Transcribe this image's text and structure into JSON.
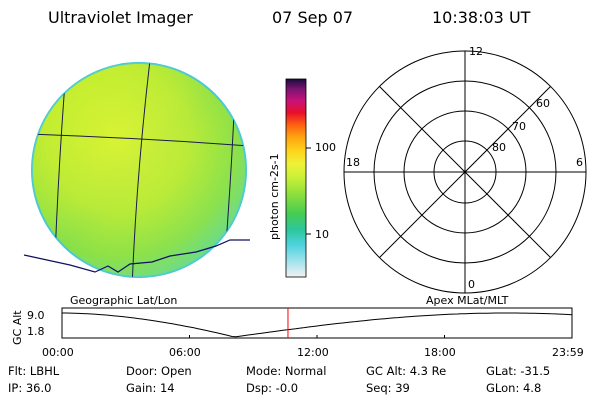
{
  "header": {
    "instrument": "Ultraviolet Imager",
    "date": "07 Sep 07",
    "time": "10:38:03 UT"
  },
  "colorbar": {
    "unit_label": "photon cm-2s-1",
    "ticks": [
      {
        "value": 100,
        "label": "100"
      },
      {
        "value": 10,
        "label": "10"
      }
    ]
  },
  "polar_plot": {
    "mlt_labels": [
      {
        "hour": 12,
        "label": "12"
      },
      {
        "hour": 18,
        "label": "18"
      },
      {
        "hour": 6,
        "label": "6"
      },
      {
        "hour": 0,
        "label": "0"
      }
    ],
    "lat_labels": [
      {
        "mlat": 60,
        "label": "60"
      },
      {
        "mlat": 70,
        "label": "70"
      },
      {
        "mlat": 80,
        "label": "80"
      }
    ]
  },
  "labels": {
    "geo": "Geographic Lat/Lon",
    "apex": "Apex MLat/MLT"
  },
  "altitude_plot": {
    "y_axis_label": "GC Alt",
    "y_ticks": [
      {
        "value": 9.0,
        "label": "9.0"
      },
      {
        "value": 1.8,
        "label": "1.8"
      }
    ],
    "x_ticks": [
      {
        "hours": 0,
        "label": "00:00"
      },
      {
        "hours": 6,
        "label": "06:00"
      },
      {
        "hours": 12,
        "label": "12:00"
      },
      {
        "hours": 18,
        "label": "18:00"
      },
      {
        "hours": 24,
        "label": "23:59"
      }
    ],
    "current_time_hours": 10.634,
    "cursor_color": "#ff0000"
  },
  "status": {
    "flt": "Flt:  LBHL",
    "ip": "IP:  36.0",
    "door": "Door:  Open",
    "gain": "Gain:  14",
    "mode": "Mode:  Normal",
    "dsp": "Dsp:    -0.0",
    "gcalt": "GC Alt:  4.3 Re",
    "seq": "Seq:  39",
    "glat": "GLat:  -31.5",
    "glon": "GLon:    4.8"
  }
}
